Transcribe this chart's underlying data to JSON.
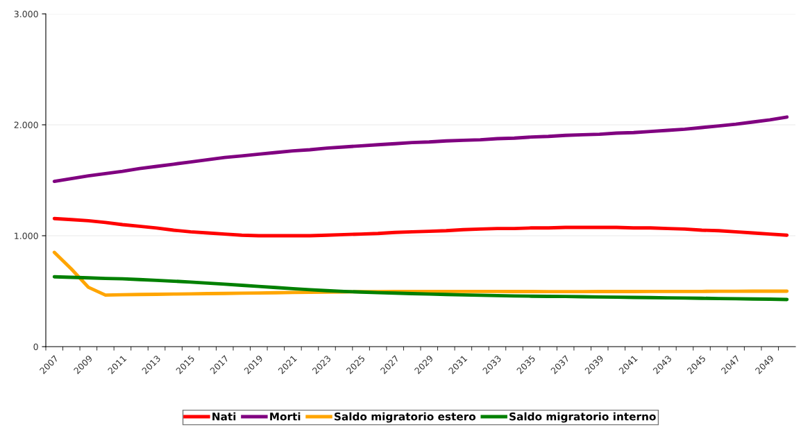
{
  "chart_data": {
    "type": "line",
    "categories": [
      "2007",
      null,
      "2009",
      null,
      "2011",
      null,
      "2013",
      null,
      "2015",
      null,
      "2017",
      null,
      "2019",
      null,
      "2021",
      null,
      "2023",
      null,
      "2025",
      null,
      "2027",
      null,
      "2029",
      null,
      "2031",
      null,
      "2033",
      null,
      "2035",
      null,
      "2037",
      null,
      "2039",
      null,
      "2041",
      null,
      "2043",
      null,
      "2045",
      null,
      "2047",
      null,
      "2049",
      null
    ],
    "series": [
      {
        "name": "Nati",
        "color": "#ff0000",
        "values": [
          1155,
          1145,
          1135,
          1120,
          1100,
          1085,
          1070,
          1050,
          1035,
          1025,
          1015,
          1005,
          1000,
          1000,
          1000,
          1000,
          1005,
          1010,
          1015,
          1020,
          1030,
          1035,
          1040,
          1045,
          1055,
          1060,
          1065,
          1065,
          1070,
          1070,
          1075,
          1075,
          1075,
          1075,
          1070,
          1070,
          1065,
          1060,
          1050,
          1045,
          1035,
          1025,
          1015,
          1005
        ]
      },
      {
        "name": "Morti",
        "color": "#800080",
        "values": [
          1490,
          1515,
          1540,
          1560,
          1580,
          1605,
          1625,
          1645,
          1665,
          1685,
          1705,
          1720,
          1735,
          1750,
          1765,
          1775,
          1790,
          1800,
          1810,
          1820,
          1830,
          1840,
          1845,
          1855,
          1860,
          1865,
          1875,
          1880,
          1890,
          1895,
          1905,
          1910,
          1915,
          1925,
          1930,
          1940,
          1950,
          1960,
          1975,
          1990,
          2005,
          2025,
          2045,
          2070
        ]
      },
      {
        "name": "Saldo migratorio estero",
        "color": "#ffa500",
        "values": [
          850,
          700,
          535,
          465,
          468,
          470,
          472,
          474,
          476,
          478,
          480,
          482,
          484,
          486,
          488,
          490,
          492,
          494,
          495,
          496,
          497,
          498,
          498,
          498,
          498,
          498,
          498,
          497,
          497,
          496,
          496,
          496,
          497,
          497,
          497,
          498,
          498,
          498,
          498,
          499,
          499,
          500,
          500,
          500
        ]
      },
      {
        "name": "Saldo migratorio interno",
        "color": "#008000",
        "values": [
          630,
          625,
          620,
          615,
          612,
          605,
          598,
          590,
          582,
          573,
          563,
          553,
          543,
          533,
          523,
          513,
          505,
          498,
          492,
          487,
          483,
          478,
          474,
          470,
          466,
          463,
          460,
          457,
          455,
          453,
          452,
          450,
          448,
          446,
          444,
          442,
          440,
          438,
          436,
          434,
          432,
          430,
          428,
          425
        ]
      }
    ],
    "ylim": [
      0,
      3000
    ],
    "yticks": [
      {
        "value": 0,
        "label": "0"
      },
      {
        "value": 1000,
        "label": "1.000"
      },
      {
        "value": 2000,
        "label": "2.000"
      },
      {
        "value": 3000,
        "label": "3.000"
      }
    ],
    "grid": "y",
    "legend": "bottom",
    "marker": "none",
    "line_style": "solid"
  }
}
